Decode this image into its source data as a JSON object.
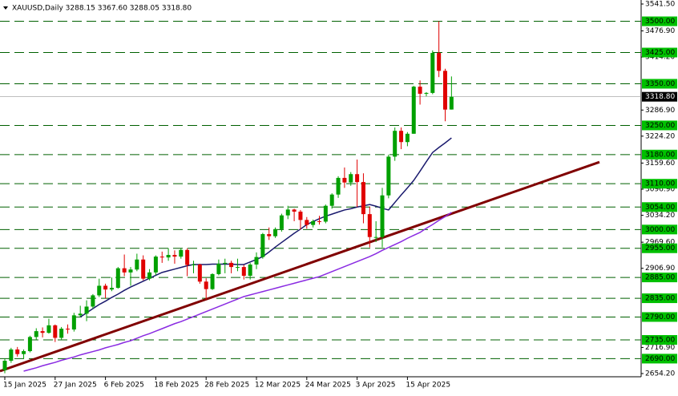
{
  "chart_data": {
    "type": "candlestick",
    "title": "XAUUSD,Daily  3288.15 3367.60 3288.05 3318.80",
    "categories": [
      "15 Jan 2025",
      null,
      null,
      null,
      null,
      null,
      null,
      null,
      "27 Jan 2025",
      null,
      null,
      null,
      null,
      null,
      null,
      null,
      "6 Feb 2025",
      null,
      null,
      null,
      null,
      null,
      null,
      null,
      "18 Feb 2025",
      null,
      null,
      null,
      null,
      null,
      null,
      null,
      "28 Feb 2025",
      null,
      null,
      null,
      null,
      null,
      null,
      null,
      "12 Mar 2025",
      null,
      null,
      null,
      null,
      null,
      null,
      null,
      "24 Mar 2025",
      null,
      null,
      null,
      null,
      null,
      null,
      null,
      "3 Apr 2025",
      null,
      null,
      null,
      null,
      null,
      null,
      null,
      "15 Apr 2025",
      null,
      null,
      null,
      null,
      null,
      null,
      null
    ],
    "open": [
      2662,
      2685,
      2712,
      2701,
      2708,
      2742,
      2756,
      2752,
      2770,
      2740,
      2762,
      2760,
      2794,
      2798,
      2815,
      2842,
      2865,
      2856,
      2860,
      2907,
      2897,
      2904,
      2928,
      2882,
      2897,
      2935,
      2933,
      2939,
      2935,
      2951,
      2915,
      2916,
      2875,
      2857,
      2893,
      2918,
      2920,
      2910,
      2910,
      2889,
      2916,
      2934,
      2989,
      2984,
      3001,
      3034,
      3048,
      3043,
      3023,
      3011,
      3020,
      3019,
      3057,
      3084,
      3124,
      3113,
      3133,
      3114,
      3037,
      2982,
      2982,
      3082,
      3175,
      3237,
      3210,
      3230,
      3343,
      3326,
      3328,
      3424,
      3381,
      3288.15
    ],
    "high": [
      2690,
      2716,
      2718,
      2712,
      2745,
      2763,
      2765,
      2786,
      2772,
      2766,
      2772,
      2800,
      2817,
      2830,
      2845,
      2882,
      2870,
      2885,
      2910,
      2940,
      2910,
      2942,
      2938,
      2905,
      2938,
      2947,
      2955,
      2950,
      2955,
      2955,
      2925,
      2918,
      2883,
      2895,
      2928,
      2930,
      2925,
      2930,
      2915,
      2920,
      2945,
      2992,
      3005,
      3005,
      3038,
      3057,
      3050,
      3047,
      3030,
      3024,
      3033,
      3060,
      3087,
      3128,
      3149,
      3138,
      3168,
      3135,
      3055,
      3020,
      3100,
      3180,
      3245,
      3245,
      3234,
      3345,
      3358,
      3330,
      3430,
      3500,
      3386,
      3367.6
    ],
    "low": [
      2655,
      2680,
      2695,
      2690,
      2705,
      2735,
      2741,
      2750,
      2730,
      2735,
      2750,
      2755,
      2790,
      2780,
      2810,
      2838,
      2835,
      2852,
      2858,
      2888,
      2865,
      2900,
      2878,
      2878,
      2890,
      2920,
      2925,
      2918,
      2930,
      2888,
      2895,
      2870,
      2832,
      2855,
      2890,
      2895,
      2895,
      2900,
      2880,
      2880,
      2905,
      2930,
      2975,
      2980,
      2995,
      3025,
      3020,
      3000,
      3002,
      3005,
      3012,
      3015,
      3050,
      3076,
      3100,
      3105,
      3054,
      3015,
      2957,
      2970,
      2957,
      3075,
      3165,
      3193,
      3200,
      3230,
      3300,
      3320,
      3325,
      3366,
      3260,
      3288.05
    ],
    "close": [
      2685,
      2712,
      2701,
      2708,
      2742,
      2756,
      2752,
      2770,
      2740,
      2762,
      2760,
      2794,
      2798,
      2815,
      2842,
      2865,
      2856,
      2860,
      2907,
      2897,
      2904,
      2928,
      2882,
      2897,
      2935,
      2933,
      2939,
      2935,
      2951,
      2915,
      2916,
      2875,
      2857,
      2893,
      2918,
      2920,
      2910,
      2910,
      2889,
      2916,
      2934,
      2989,
      2984,
      3001,
      3034,
      3048,
      3043,
      3023,
      3011,
      3020,
      3019,
      3057,
      3084,
      3124,
      3113,
      3133,
      3114,
      3037,
      2982,
      2982,
      3082,
      3175,
      3237,
      3210,
      3230,
      3343,
      3326,
      3328,
      3424,
      3381,
      3288,
      3318.8
    ],
    "up_color": "#00a000",
    "down_color": "#e00000",
    "lines": [
      {
        "color": "#1a1a6e",
        "values": [
          null,
          null,
          null,
          null,
          null,
          null,
          null,
          null,
          null,
          null,
          null,
          null,
          2790,
          2800,
          2810,
          2820,
          2828,
          2837,
          2845,
          2854,
          2862,
          2869,
          2876,
          2883,
          2890,
          2897,
          2901,
          2905,
          2909,
          2913,
          2916,
          2916,
          2916,
          2917,
          2917,
          2917,
          2917,
          2916,
          2916,
          2922,
          2928,
          2935,
          2946,
          2958,
          2969,
          2980,
          2991,
          3001,
          3012,
          3019,
          3026,
          3032,
          3037,
          3042,
          3047,
          3050,
          3054,
          3057,
          3060,
          3056,
          3051,
          3047,
          3065,
          3083,
          3100,
          3118,
          3140,
          3163,
          3185,
          3197,
          3208,
          3220
        ]
      },
      {
        "color": "#8a2be2",
        "values": [
          null,
          null,
          null,
          2660,
          2664,
          2668,
          2673,
          2677,
          2681,
          2686,
          2690,
          2694,
          2699,
          2703,
          2707,
          2711,
          2716,
          2720,
          2724,
          2729,
          2733,
          2739,
          2745,
          2750,
          2756,
          2762,
          2768,
          2774,
          2779,
          2785,
          2791,
          2797,
          2803,
          2809,
          2815,
          2821,
          2827,
          2833,
          2839,
          2843,
          2847,
          2851,
          2855,
          2859,
          2863,
          2867,
          2871,
          2875,
          2879,
          2883,
          2887,
          2893,
          2899,
          2905,
          2911,
          2917,
          2923,
          2929,
          2935,
          2942,
          2950,
          2957,
          2964,
          2971,
          2979,
          2986,
          2993,
          3003,
          3012,
          3022,
          3031,
          3041
        ]
      }
    ],
    "trendline": {
      "color": "#800000",
      "start": 2660,
      "end": 3162
    },
    "ylim": [
      2654.2,
      3541.5
    ],
    "yticks": [
      {
        "value": 2654.2,
        "label": "2654.20"
      },
      {
        "value": 2716.9,
        "label": "2716.90"
      },
      {
        "value": 2906.9,
        "label": "2906.90"
      },
      {
        "value": 2969.6,
        "label": "2969.60"
      },
      {
        "value": 3034.2,
        "label": "3034.20"
      },
      {
        "value": 3096.9,
        "label": "3096.90"
      },
      {
        "value": 3159.6,
        "label": "3159.60"
      },
      {
        "value": 3224.2,
        "label": "3224.20"
      },
      {
        "value": 3286.9,
        "label": "3286.90"
      },
      {
        "value": 3414.2,
        "label": "3414.20"
      },
      {
        "value": 3476.9,
        "label": "3476.90"
      },
      {
        "value": 3541.5,
        "label": "3541.50"
      }
    ],
    "levels": [
      {
        "value": 3500,
        "label": "3500.00"
      },
      {
        "value": 3425,
        "label": "3425.00"
      },
      {
        "value": 3350,
        "label": "3350.00"
      },
      {
        "value": 3250,
        "label": "3250.00"
      },
      {
        "value": 3180,
        "label": "3180.00"
      },
      {
        "value": 3110,
        "label": "3110.00"
      },
      {
        "value": 3054,
        "label": "3054.00"
      },
      {
        "value": 3000,
        "label": "3000.00"
      },
      {
        "value": 2955,
        "label": "2955.00"
      },
      {
        "value": 2885,
        "label": "2885.00"
      },
      {
        "value": 2835,
        "label": "2835.00"
      },
      {
        "value": 2790,
        "label": "2790.00"
      },
      {
        "value": 2735,
        "label": "2735.00"
      },
      {
        "value": 2690,
        "label": "2690.00"
      }
    ],
    "level_color": "#00c000",
    "last_price": {
      "value": 3318.8,
      "label": "3318.80"
    }
  }
}
